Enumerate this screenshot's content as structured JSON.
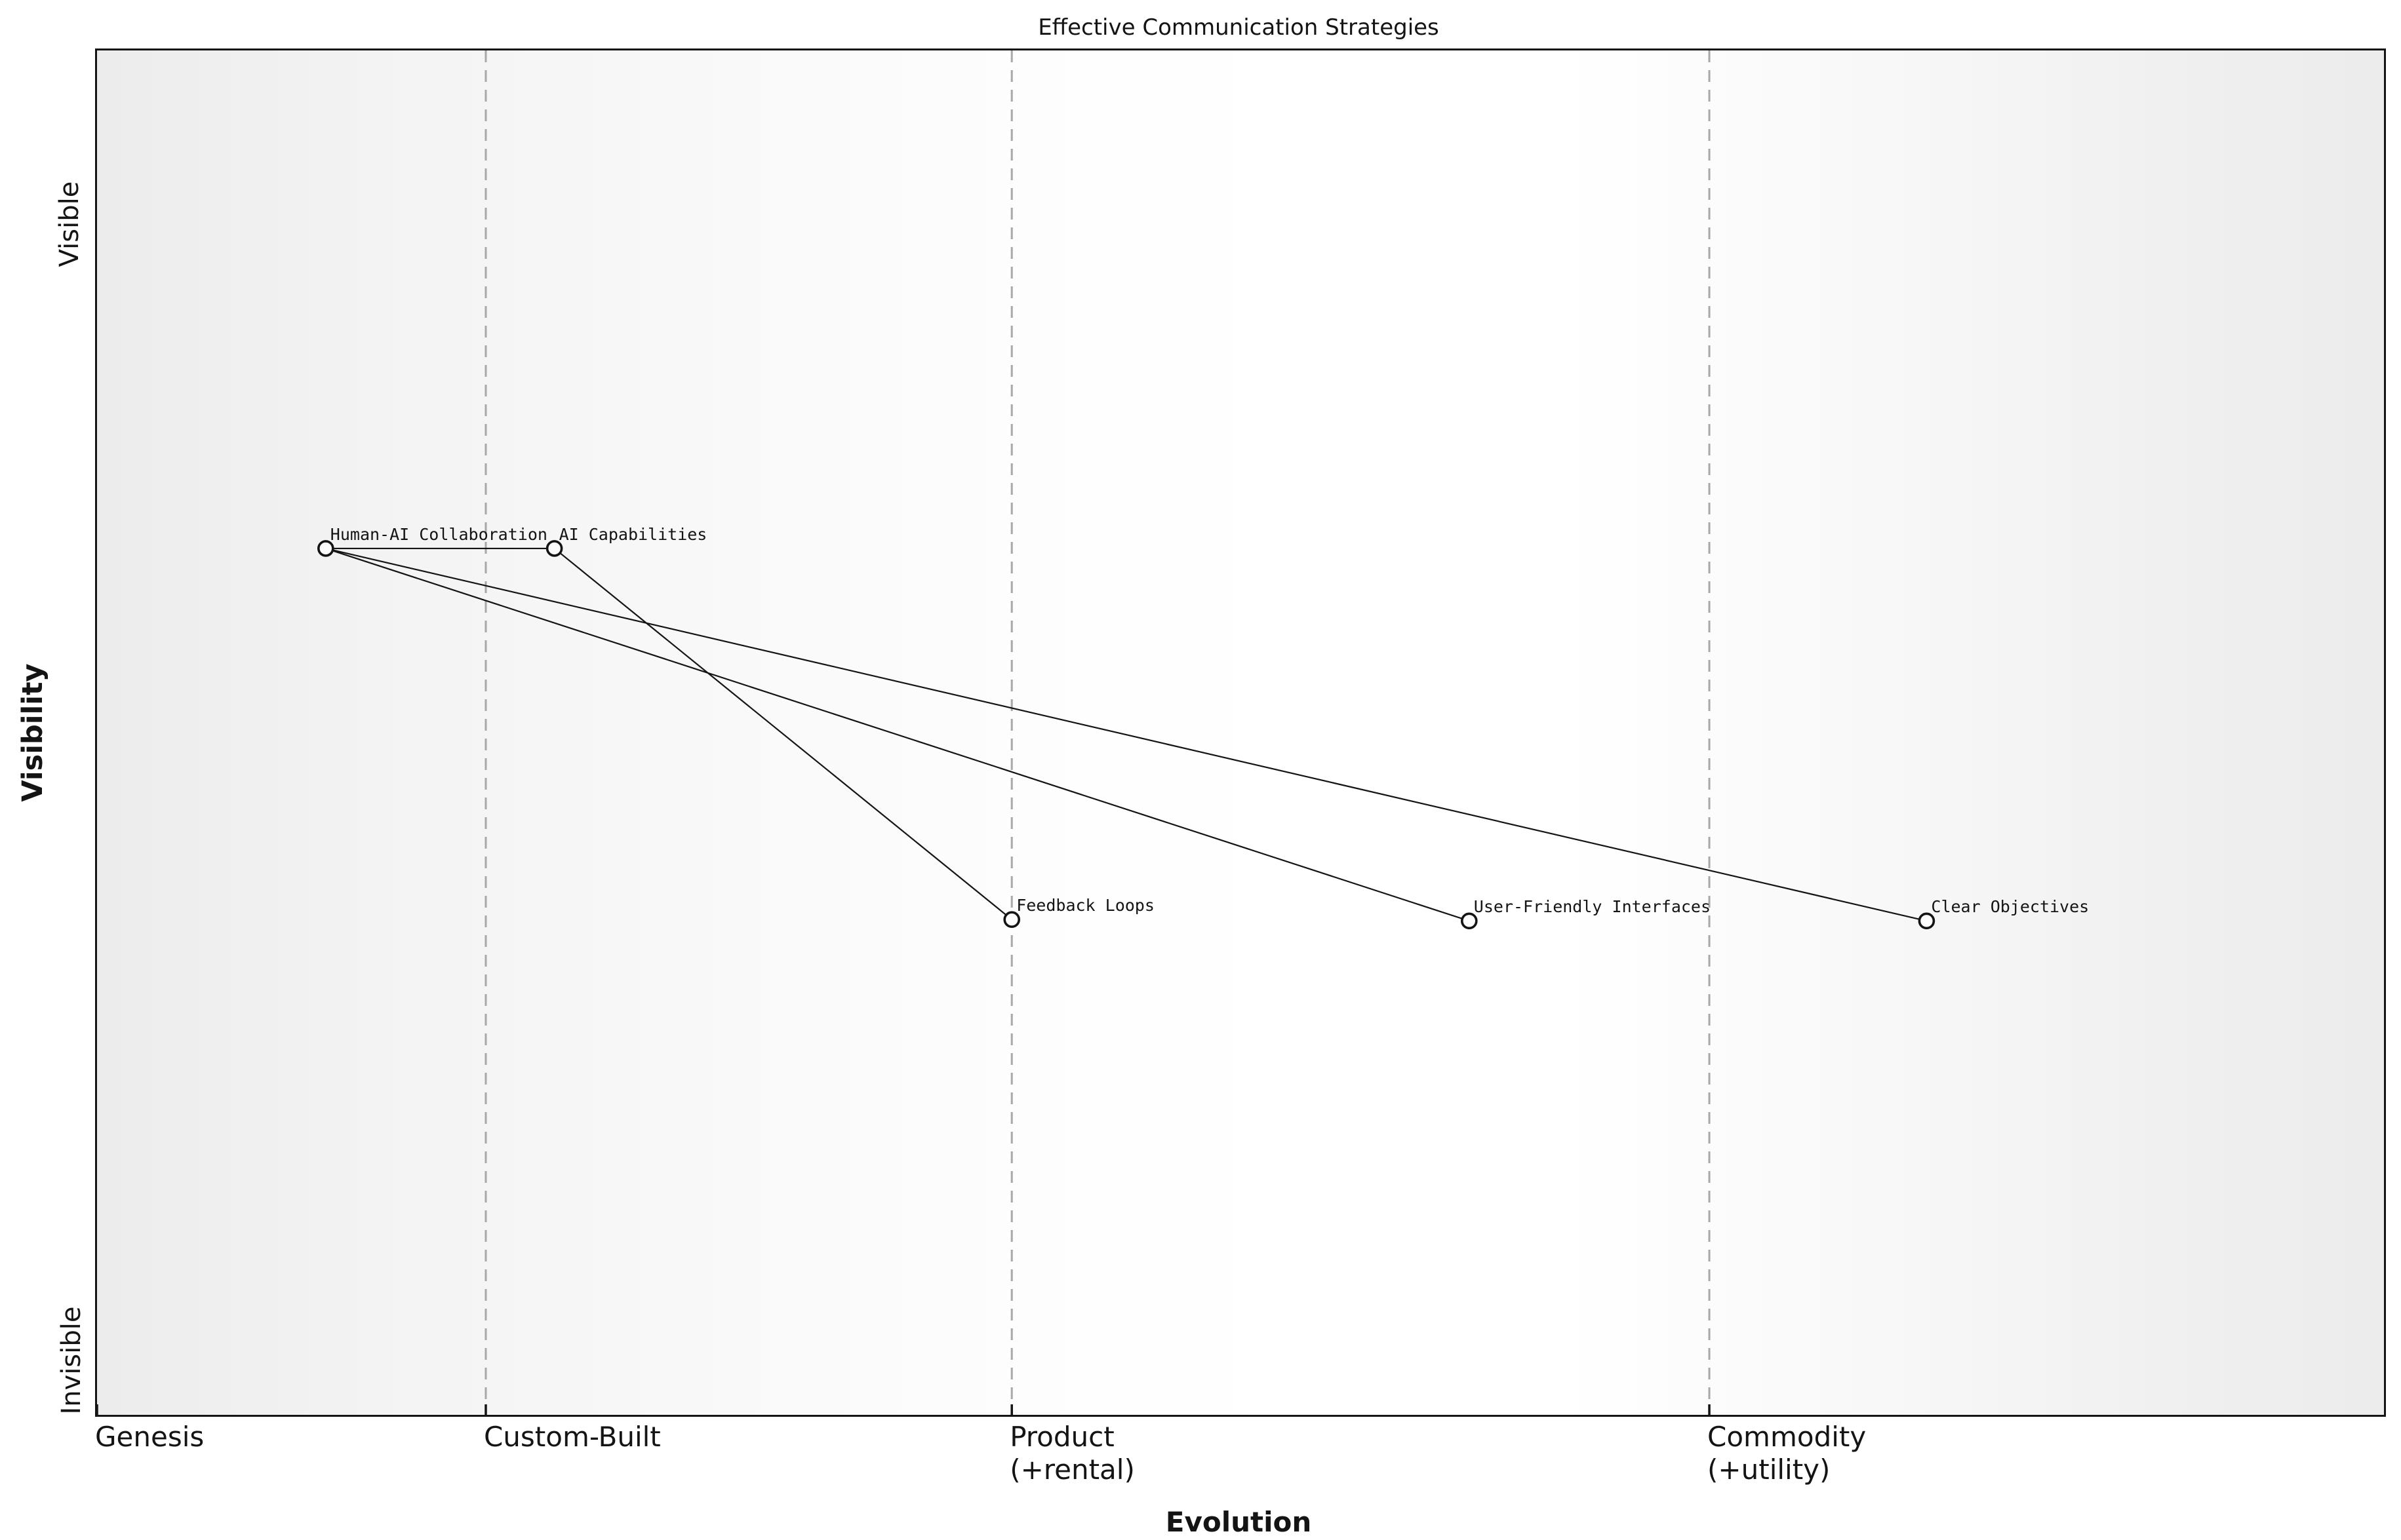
{
  "figure": {
    "background_color": "#ffffff",
    "plot_border_color": "#141414",
    "text_color": "#141414",
    "grid_color": "#a8a8a8",
    "edge_color": "#141414",
    "node_fill_color": "#fdfdfd",
    "node_stroke_color": "#141414"
  },
  "chart_data": {
    "type": "scatter",
    "title": "Effective Communication Strategies",
    "xlabel": "Evolution",
    "ylabel": "Visibility",
    "xlim": [
      0,
      1
    ],
    "ylim": [
      0,
      1
    ],
    "grid_on": true,
    "grid_style": "dashed-vertical",
    "grid_x": [
      0.17,
      0.4,
      0.705
    ],
    "x_ticks": [
      {
        "label": "Genesis",
        "pos": 0.0
      },
      {
        "label": "Custom-Built",
        "pos": 0.17
      },
      {
        "label": "Product\n(+rental)",
        "pos": 0.4
      },
      {
        "label": "Commodity\n(+utility)",
        "pos": 0.705
      }
    ],
    "y_ticks": [
      {
        "label": "Visible",
        "pos": 0.871
      },
      {
        "label": "Invisible",
        "pos": 0.038
      }
    ],
    "nodes": [
      {
        "id": "human-ai-collaboration",
        "label": "Human-AI Collaboration",
        "evolution": 0.1,
        "visibility": 0.635
      },
      {
        "id": "ai-capabilities",
        "label": "AI Capabilities",
        "evolution": 0.2,
        "visibility": 0.635
      },
      {
        "id": "feedback-loops",
        "label": "Feedback Loops",
        "evolution": 0.4,
        "visibility": 0.363
      },
      {
        "id": "user-friendly-interfaces",
        "label": "User-Friendly Interfaces",
        "evolution": 0.6,
        "visibility": 0.362
      },
      {
        "id": "clear-objectives",
        "label": "Clear Objectives",
        "evolution": 0.8,
        "visibility": 0.362
      }
    ],
    "edges": [
      {
        "from": "human-ai-collaboration",
        "to": "ai-capabilities"
      },
      {
        "from": "human-ai-collaboration",
        "to": "user-friendly-interfaces"
      },
      {
        "from": "human-ai-collaboration",
        "to": "clear-objectives"
      },
      {
        "from": "ai-capabilities",
        "to": "feedback-loops"
      }
    ]
  }
}
